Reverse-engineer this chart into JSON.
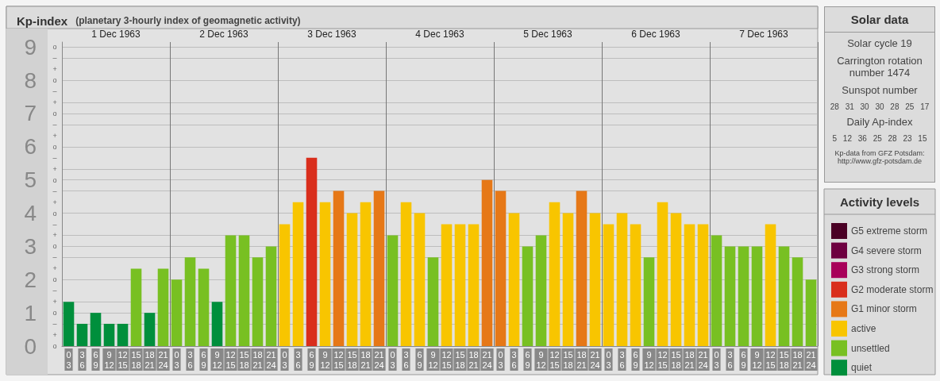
{
  "chart_data": [
    {
      "type": "bar",
      "title": "Kp-index",
      "subtitle": "(planetary 3-hourly index of geomagnetic activity)",
      "categories": [
        "0\n3",
        "3\n6",
        "6\n9",
        "9\n12",
        "12\n15",
        "15\n18",
        "18\n21",
        "21\n24",
        "0\n3",
        "3\n6",
        "6\n9",
        "9\n12",
        "12\n15",
        "15\n18",
        "18\n21",
        "21\n24",
        "0\n3",
        "3\n6",
        "6\n9",
        "9\n12",
        "12\n15",
        "15\n18",
        "18\n21",
        "21\n24",
        "0\n3",
        "3\n6",
        "6\n9",
        "9\n12",
        "12\n15",
        "15\n18",
        "18\n21",
        "21\n24",
        "0\n3",
        "3\n6",
        "6\n9",
        "9\n12",
        "12\n15",
        "15\n18",
        "18\n21",
        "21\n24",
        "0\n3",
        "3\n6",
        "6\n9",
        "9\n12",
        "12\n15",
        "15\n18",
        "18\n21",
        "21\n24",
        "0\n3",
        "3\n6",
        "6\n9",
        "9\n12",
        "12\n15",
        "15\n18",
        "18\n21",
        "21\n24"
      ],
      "series": [
        {
          "name": "G5 extreme storm",
          "color": "#4a0025",
          "values": [
            null,
            null,
            null,
            null,
            null,
            null,
            null,
            null,
            null,
            null,
            null,
            null,
            null,
            null,
            null,
            null,
            null,
            null,
            null,
            null,
            null,
            null,
            null,
            null,
            null,
            null,
            null,
            null,
            null,
            null,
            null,
            null,
            null,
            null,
            null,
            null,
            null,
            null,
            null,
            null,
            null,
            null,
            null,
            null,
            null,
            null,
            null,
            null,
            null,
            null,
            null,
            null,
            null,
            null,
            null,
            null
          ]
        },
        {
          "name": "G4 severe storm",
          "color": "#6e0040",
          "values": [
            null,
            null,
            null,
            null,
            null,
            null,
            null,
            null,
            null,
            null,
            null,
            null,
            null,
            null,
            null,
            null,
            null,
            null,
            null,
            null,
            null,
            null,
            null,
            null,
            null,
            null,
            null,
            null,
            null,
            null,
            null,
            null,
            null,
            null,
            null,
            null,
            null,
            null,
            null,
            null,
            null,
            null,
            null,
            null,
            null,
            null,
            null,
            null,
            null,
            null,
            null,
            null,
            null,
            null,
            null,
            null
          ]
        },
        {
          "name": "G3 strong storm",
          "color": "#a8005a",
          "values": [
            null,
            null,
            null,
            null,
            null,
            null,
            null,
            null,
            null,
            null,
            null,
            null,
            null,
            null,
            null,
            null,
            null,
            null,
            null,
            null,
            null,
            null,
            null,
            null,
            null,
            null,
            null,
            null,
            null,
            null,
            null,
            null,
            null,
            null,
            null,
            null,
            null,
            null,
            null,
            null,
            null,
            null,
            null,
            null,
            null,
            null,
            null,
            null,
            null,
            null,
            null,
            null,
            null,
            null,
            null,
            null
          ]
        },
        {
          "name": "G2 moderate storm",
          "color": "#d92e1c",
          "values": [
            null,
            null,
            null,
            null,
            null,
            null,
            null,
            null,
            null,
            null,
            null,
            null,
            null,
            null,
            null,
            null,
            null,
            null,
            5.67,
            null,
            null,
            null,
            null,
            null,
            null,
            null,
            null,
            null,
            null,
            null,
            null,
            null,
            null,
            null,
            null,
            null,
            null,
            null,
            null,
            null,
            null,
            null,
            null,
            null,
            null,
            null,
            null,
            null,
            null,
            null,
            null,
            null,
            null,
            null,
            null,
            null
          ]
        },
        {
          "name": "G1 minor storm",
          "color": "#e67817",
          "values": [
            null,
            null,
            null,
            null,
            null,
            null,
            null,
            null,
            null,
            null,
            null,
            null,
            null,
            null,
            null,
            null,
            null,
            null,
            null,
            null,
            4.67,
            null,
            null,
            4.67,
            null,
            null,
            null,
            null,
            null,
            null,
            null,
            5,
            4.67,
            null,
            null,
            null,
            null,
            null,
            4.67,
            null,
            null,
            null,
            null,
            null,
            null,
            null,
            null,
            null,
            null,
            null,
            null,
            null,
            null,
            null,
            null,
            null
          ]
        },
        {
          "name": "active",
          "color": "#f8c500",
          "values": [
            null,
            null,
            null,
            null,
            null,
            null,
            null,
            null,
            null,
            null,
            null,
            null,
            null,
            null,
            null,
            null,
            3.67,
            4.33,
            null,
            4.33,
            null,
            4,
            4.33,
            null,
            null,
            4.33,
            4,
            null,
            3.67,
            3.67,
            3.67,
            null,
            null,
            4,
            null,
            null,
            4.33,
            4,
            null,
            4,
            3.67,
            4,
            3.67,
            null,
            4.33,
            4,
            3.67,
            3.67,
            null,
            null,
            null,
            null,
            3.67,
            null,
            null,
            null
          ]
        },
        {
          "name": "unsettled",
          "color": "#78c022",
          "values": [
            null,
            null,
            null,
            null,
            null,
            2.33,
            null,
            2.33,
            2,
            2.67,
            2.33,
            null,
            3.33,
            3.33,
            2.67,
            3,
            null,
            null,
            null,
            null,
            null,
            null,
            null,
            null,
            3.33,
            null,
            null,
            2.67,
            null,
            null,
            null,
            null,
            null,
            null,
            3,
            3.33,
            null,
            null,
            null,
            null,
            null,
            null,
            null,
            2.67,
            null,
            null,
            null,
            null,
            3.33,
            3,
            3,
            3,
            null,
            3,
            2.67,
            2
          ]
        },
        {
          "name": "quiet",
          "color": "#008f3c",
          "values": [
            1.33,
            0.67,
            1,
            0.67,
            0.67,
            null,
            1,
            null,
            null,
            null,
            null,
            1.33,
            null,
            null,
            null,
            null,
            null,
            null,
            null,
            null,
            null,
            null,
            null,
            null,
            null,
            null,
            null,
            null,
            null,
            null,
            null,
            null,
            null,
            null,
            null,
            null,
            null,
            null,
            null,
            null,
            null,
            null,
            null,
            null,
            null,
            null,
            null,
            null,
            null,
            null,
            null,
            null,
            null,
            null,
            null,
            null
          ]
        }
      ],
      "ylim": [
        0,
        9.15
      ],
      "yticks": [
        0,
        1,
        2,
        3,
        4,
        5,
        6,
        7,
        8,
        9
      ],
      "annotations": [
        "1 Dec 1963",
        "2 Dec 1963",
        "3 Dec 1963",
        "4 Dec 1963",
        "5 Dec 1963",
        "6 Dec 1963",
        "7 Dec 1963",
        "o",
        "+",
        "–",
        "o",
        "+",
        "–",
        "o",
        "+",
        "–",
        "o",
        "+",
        "–",
        "o",
        "+",
        "–",
        "o",
        "+",
        "–",
        "o",
        "+",
        "–",
        "o",
        "+",
        "–",
        "o",
        "+",
        "–",
        "o"
      ],
      "grid": "y",
      "legend": "right",
      "legend_title": "Activity levels"
    },
    {
      "type": "other",
      "title": "Solar data",
      "annotations": [
        "Solar cycle 19",
        "Carrington rotation number 1474",
        "Sunspot number",
        "28 31 30 30 28 25 17",
        "Daily Ap-index",
        "5 12 36 25 28 23 15",
        "Kp-data from GFZ Potsdam: http://www.gfz-potsdam.de"
      ]
    }
  ]
}
